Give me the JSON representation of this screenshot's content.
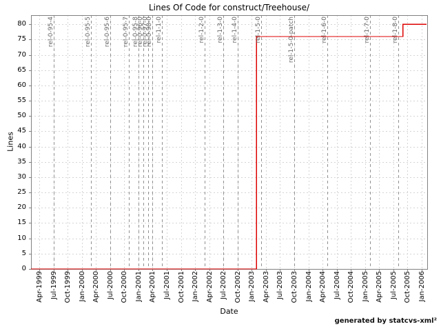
{
  "credit": "generated by statcvs-xml²",
  "chart_data": {
    "type": "line",
    "title": "Lines Of Code for construct/Treehouse/",
    "xlabel": "Date",
    "ylabel": "Lines",
    "ylim": [
      0,
      83
    ],
    "grid": true,
    "legend": "none",
    "y_ticks": [
      0,
      5,
      10,
      15,
      20,
      25,
      30,
      35,
      40,
      45,
      50,
      55,
      60,
      65,
      70,
      75,
      80
    ],
    "x_ticks": [
      "Apr-1999",
      "Jul-1999",
      "Oct-1999",
      "Jan-2000",
      "Apr-2000",
      "Jul-2000",
      "Oct-2000",
      "Jan-2001",
      "Apr-2001",
      "Jul-2001",
      "Oct-2001",
      "Jan-2002",
      "Apr-2002",
      "Jul-2002",
      "Oct-2002",
      "Jan-2003",
      "Apr-2003",
      "Jul-2003",
      "Oct-2003",
      "Jan-2004",
      "Apr-2004",
      "Jul-2004",
      "Oct-2004",
      "Jan-2005",
      "Apr-2005",
      "Jul-2005",
      "Oct-2005",
      "Jan-2006"
    ],
    "series": [
      {
        "name": "Lines Of Code",
        "style": "step",
        "color": "#dd0000",
        "points": [
          [
            "Feb-1999",
            0
          ],
          [
            "Feb-2003",
            0
          ],
          [
            "Feb-2003",
            76
          ],
          [
            "Sep-2005",
            76
          ],
          [
            "Sep-2005",
            80
          ],
          [
            "Feb-2006",
            80
          ]
        ]
      }
    ],
    "release_markers": [
      {
        "label": "rel-0-95-4",
        "date": "Jul-1999"
      },
      {
        "label": "rel-0-95-5",
        "date": "Mar-2000"
      },
      {
        "label": "rel-0-95-6",
        "date": "Jul-2000"
      },
      {
        "label": "rel-0-95-7",
        "date": "Nov-2000"
      },
      {
        "label": "rel-0-95-8",
        "date": "Jan-2001"
      },
      {
        "label": "rel-0-96-0",
        "date": "Feb-2001"
      },
      {
        "label": "rel-0-97-0",
        "date": "Mar-2001"
      },
      {
        "label": "rel-0-98-0",
        "date": "Apr-2001"
      },
      {
        "label": "rel-1-1-0",
        "date": "Jun-2001"
      },
      {
        "label": "rel-1-2-0",
        "date": "Mar-2002"
      },
      {
        "label": "rel-1-3-0",
        "date": "Jul-2002"
      },
      {
        "label": "rel-1-4-0",
        "date": "Oct-2002"
      },
      {
        "label": "rel-1-5-0",
        "date": "Mar-2003"
      },
      {
        "label": "rel-1-5-0-patch",
        "date": "Oct-2003"
      },
      {
        "label": "rel-1-6-0",
        "date": "May-2004"
      },
      {
        "label": "rel-1-7-0",
        "date": "Feb-2005"
      },
      {
        "label": "rel-1-8-0",
        "date": "Aug-2005"
      }
    ],
    "colors": {
      "series": "#dd0000",
      "grid": "#d4d4d4",
      "marker_line": "#909090",
      "marker_label": "#666666",
      "border": "#808080",
      "background": "#ffffff"
    }
  }
}
